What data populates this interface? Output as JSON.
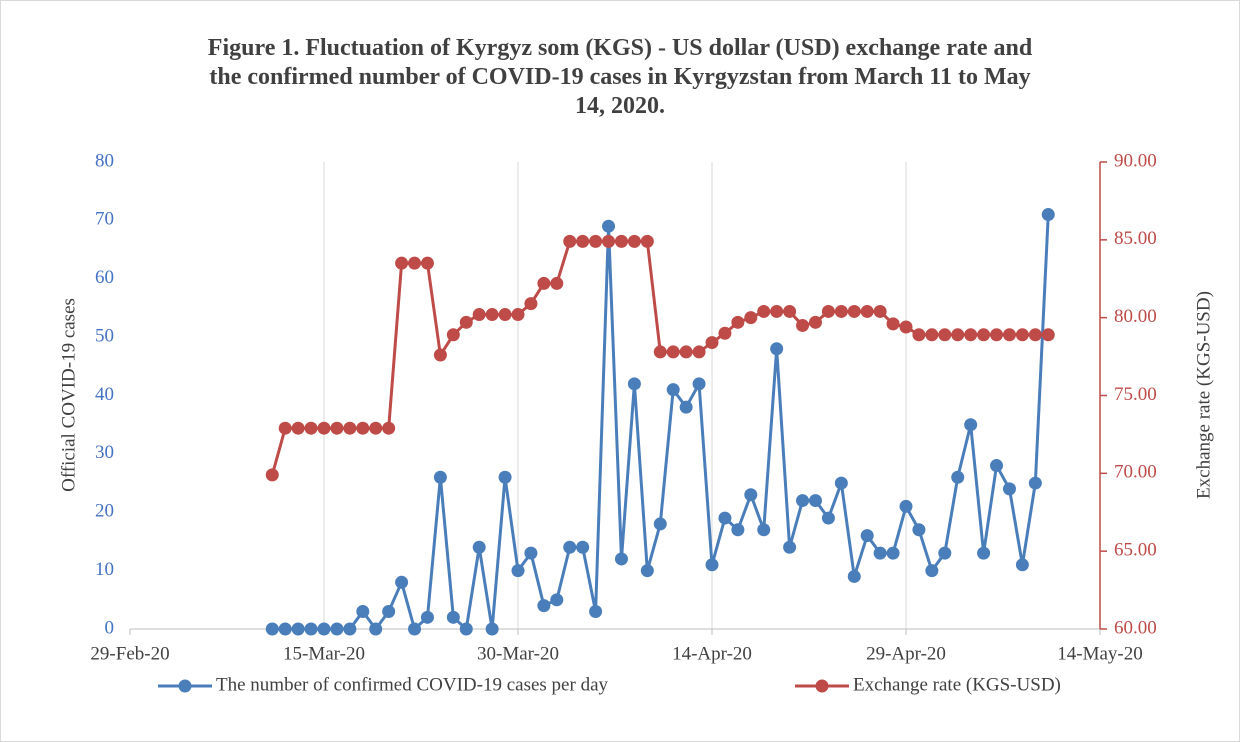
{
  "chart_data": {
    "type": "line",
    "title": "Figure 1. Fluctuation of Kyrgyz som (KGS) - US dollar (USD) exchange rate and the confirmed number of COVID-19 cases in Kyrgyzstan from March 11 to May 14, 2020.",
    "y_label": "Official COVID-19 cases",
    "y2_label": "Exchange rate (KGS-USD)",
    "x": [
      "2020-03-11",
      "2020-03-12",
      "2020-03-13",
      "2020-03-14",
      "2020-03-15",
      "2020-03-16",
      "2020-03-17",
      "2020-03-18",
      "2020-03-19",
      "2020-03-20",
      "2020-03-21",
      "2020-03-22",
      "2020-03-23",
      "2020-03-24",
      "2020-03-25",
      "2020-03-26",
      "2020-03-27",
      "2020-03-28",
      "2020-03-29",
      "2020-03-30",
      "2020-03-31",
      "2020-04-01",
      "2020-04-02",
      "2020-04-03",
      "2020-04-04",
      "2020-04-05",
      "2020-04-06",
      "2020-04-07",
      "2020-04-08",
      "2020-04-09",
      "2020-04-10",
      "2020-04-11",
      "2020-04-12",
      "2020-04-13",
      "2020-04-14",
      "2020-04-15",
      "2020-04-16",
      "2020-04-17",
      "2020-04-18",
      "2020-04-19",
      "2020-04-20",
      "2020-04-21",
      "2020-04-22",
      "2020-04-23",
      "2020-04-24",
      "2020-04-25",
      "2020-04-26",
      "2020-04-27",
      "2020-04-28",
      "2020-04-29",
      "2020-04-30",
      "2020-05-01",
      "2020-05-02",
      "2020-05-03",
      "2020-05-04",
      "2020-05-05",
      "2020-05-06",
      "2020-05-07",
      "2020-05-08",
      "2020-05-09",
      "2020-05-10"
    ],
    "xlim": [
      "2020-02-29",
      "2020-05-14"
    ],
    "xticks": [
      {
        "value": "2020-02-29",
        "label": "29-Feb-20"
      },
      {
        "value": "2020-03-15",
        "label": "15-Mar-20"
      },
      {
        "value": "2020-03-30",
        "label": "30-Mar-20"
      },
      {
        "value": "2020-04-14",
        "label": "14-Apr-20"
      },
      {
        "value": "2020-04-29",
        "label": "29-Apr-20"
      },
      {
        "value": "2020-05-14",
        "label": "14-May-20"
      }
    ],
    "ylim": [
      0,
      80
    ],
    "yticks": [
      0,
      10,
      20,
      30,
      40,
      50,
      60,
      70,
      80
    ],
    "y2lim": [
      60,
      90
    ],
    "y2ticks": [
      {
        "value": 60,
        "label": "60.00"
      },
      {
        "value": 65,
        "label": "65.00"
      },
      {
        "value": 70,
        "label": "70.00"
      },
      {
        "value": 75,
        "label": "75.00"
      },
      {
        "value": 80,
        "label": "80.00"
      },
      {
        "value": 85,
        "label": "85.00"
      },
      {
        "value": 90,
        "label": "90.00"
      }
    ],
    "grid": true,
    "legend": "bottom",
    "series": [
      {
        "name": "The number of confirmed COVID-19 cases per day",
        "color": "#4a7ebb",
        "values": [
          0,
          0,
          0,
          0,
          0,
          0,
          0,
          3,
          0,
          3,
          8,
          0,
          2,
          26,
          2,
          0,
          14,
          0,
          26,
          10,
          13,
          4,
          5,
          14,
          14,
          3,
          69,
          12,
          42,
          10,
          18,
          41,
          38,
          42,
          11,
          19,
          17,
          23,
          17,
          48,
          14,
          22,
          22,
          19,
          25,
          9,
          16,
          13,
          13,
          21,
          17,
          10,
          13,
          26,
          35,
          13,
          28,
          24,
          11,
          25,
          71
        ]
      },
      {
        "name": "Exchange rate (KGS-USD)",
        "color": "#be4b48",
        "axis": "y2",
        "values": [
          69.9,
          72.9,
          72.9,
          72.9,
          72.9,
          72.9,
          72.9,
          72.9,
          72.9,
          72.9,
          83.5,
          83.5,
          83.5,
          77.6,
          78.9,
          79.7,
          80.2,
          80.2,
          80.2,
          80.2,
          80.9,
          82.2,
          82.2,
          84.9,
          84.9,
          84.9,
          84.9,
          84.9,
          84.9,
          84.9,
          77.8,
          77.8,
          77.8,
          77.8,
          78.4,
          79.0,
          79.7,
          80.0,
          80.4,
          80.4,
          80.4,
          79.5,
          79.7,
          80.4,
          80.4,
          80.4,
          80.4,
          80.4,
          79.6,
          79.4,
          78.9,
          78.9,
          78.9,
          78.9,
          78.9,
          78.9,
          78.9,
          78.9,
          78.9,
          78.9,
          78.9
        ]
      }
    ]
  }
}
